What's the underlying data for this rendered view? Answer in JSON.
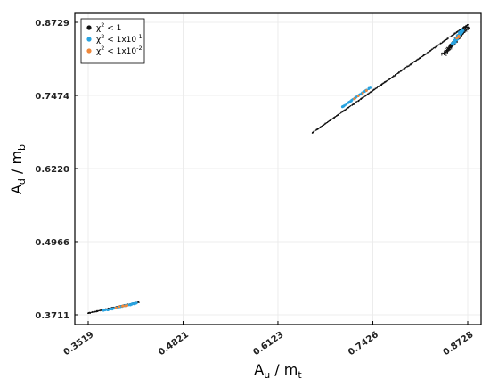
{
  "chart_data": {
    "type": "scatter",
    "title": "",
    "xlabel": {
      "main": "A",
      "sub": "u",
      "rest": " / m",
      "sub2": "t"
    },
    "ylabel": {
      "main": "A",
      "sub": "d",
      "rest": " / m",
      "sub2": "b"
    },
    "xlim": [
      0.3519,
      0.8728
    ],
    "ylim": [
      0.3711,
      0.8729
    ],
    "xticks": [
      "0.3519",
      "0.4821",
      "0.6123",
      "0.7426",
      "0.8728"
    ],
    "yticks": [
      "0.3711",
      "0.4966",
      "0.6220",
      "0.7474",
      "0.8729"
    ],
    "grid": true,
    "legend_position": "top-left",
    "series": [
      {
        "name": {
          "base": "χ",
          "sup": "2",
          "rest": " < 1"
        },
        "color": "#111111",
        "clusters": [
          {
            "from": [
              0.352,
              0.374
            ],
            "to": [
              0.422,
              0.393
            ],
            "count": 340,
            "spread": 0.0014
          },
          {
            "from": [
              0.659,
              0.683
            ],
            "to": [
              0.873,
              0.869
            ],
            "count": 900,
            "spread": 0.0012
          },
          {
            "from": [
              0.84,
              0.818
            ],
            "to": [
              0.873,
              0.866
            ],
            "count": 500,
            "spread": 0.0045
          }
        ]
      },
      {
        "name": {
          "base": "χ",
          "sup": "2",
          "rest": " < 1x10",
          "sup2": "-1"
        },
        "color": "#29a3e0",
        "clusters": [
          {
            "from": [
              0.372,
              0.378
            ],
            "to": [
              0.418,
              0.391
            ],
            "count": 70,
            "spread": 0.0012
          },
          {
            "from": [
              0.7,
              0.727
            ],
            "to": [
              0.74,
              0.762
            ],
            "count": 60,
            "spread": 0.0009
          },
          {
            "from": [
              0.852,
              0.836
            ],
            "to": [
              0.866,
              0.86
            ],
            "count": 90,
            "spread": 0.003
          }
        ]
      },
      {
        "name": {
          "base": "χ",
          "sup": "2",
          "rest": " < 1x10",
          "sup2": "-2"
        },
        "color": "#f0883a",
        "clusters": [
          {
            "from": [
              0.38,
              0.381
            ],
            "to": [
              0.41,
              0.389
            ],
            "count": 6,
            "spread": 0.001
          },
          {
            "from": [
              0.715,
              0.74
            ],
            "to": [
              0.735,
              0.757
            ],
            "count": 5,
            "spread": 0.0008
          },
          {
            "from": [
              0.858,
              0.845
            ],
            "to": [
              0.862,
              0.852
            ],
            "count": 4,
            "spread": 0.002
          }
        ]
      }
    ]
  }
}
